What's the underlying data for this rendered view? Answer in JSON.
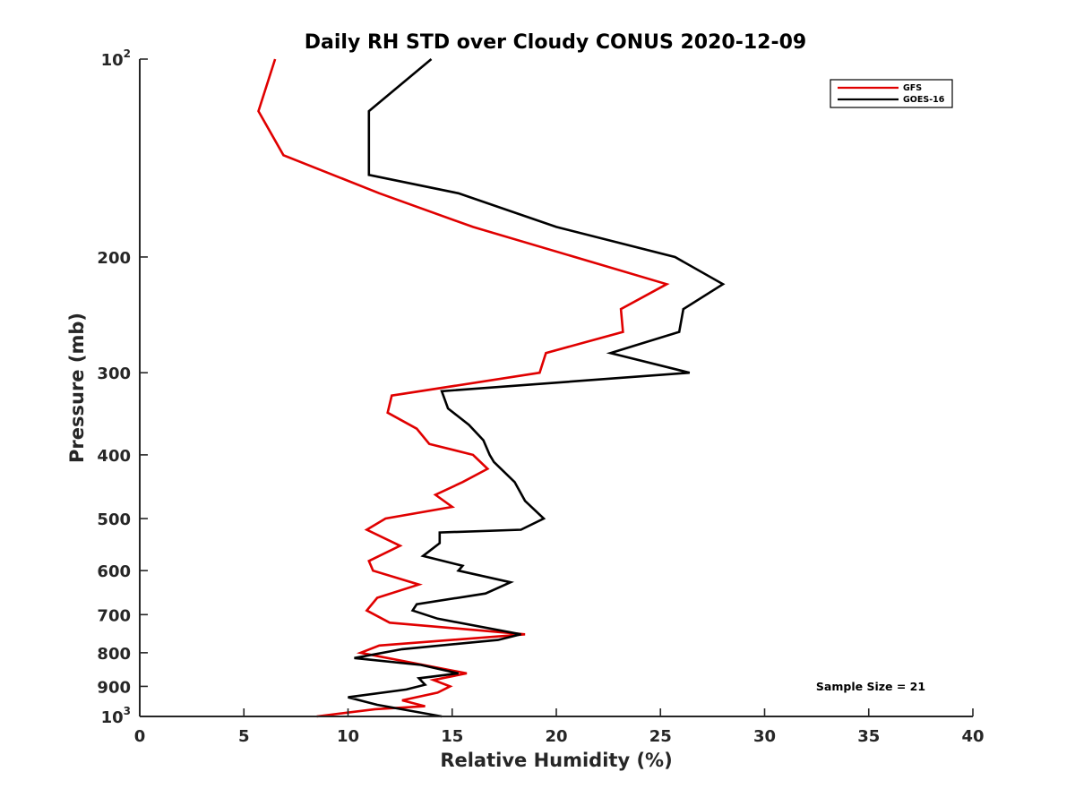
{
  "chart_data": {
    "type": "line",
    "title": "Daily RH STD over Cloudy CONUS 2020-12-09",
    "xlabel": "Relative Humidity (%)",
    "ylabel": "Pressure (mb)",
    "xlim": [
      0,
      40
    ],
    "ylim": [
      100,
      1000
    ],
    "yscale": "log",
    "y_reversed": true,
    "grid": false,
    "legend_position": "top-right",
    "x_ticks": [
      "0",
      "5",
      "10",
      "15",
      "20",
      "25",
      "30",
      "35",
      "40"
    ],
    "y_ticks": [
      {
        "value": 100,
        "base": "10",
        "exp": "2"
      },
      {
        "value": 200,
        "label": "200"
      },
      {
        "value": 300,
        "label": "300"
      },
      {
        "value": 400,
        "label": "400"
      },
      {
        "value": 500,
        "label": "500"
      },
      {
        "value": 600,
        "label": "600"
      },
      {
        "value": 700,
        "label": "700"
      },
      {
        "value": 800,
        "label": "800"
      },
      {
        "value": 900,
        "label": "900"
      },
      {
        "value": 1000,
        "base": "10",
        "exp": "3"
      }
    ],
    "annotation": "Sample Size = 21",
    "series": [
      {
        "name": "GFS",
        "color": "#e00000",
        "x": [
          6.5,
          5.7,
          6.9,
          11.5,
          16.0,
          25.3,
          23.1,
          23.2,
          19.5,
          19.2,
          12.1,
          11.9,
          13.3,
          13.9,
          16.0,
          16.7,
          15.5,
          14.2,
          15.0,
          11.8,
          10.9,
          12.5,
          11.0,
          11.2,
          13.4,
          11.4,
          10.9,
          12.0,
          18.5,
          11.5,
          10.6,
          15.7,
          14.1,
          14.9,
          14.3,
          12.6,
          13.7,
          11.3,
          8.5
        ],
        "y": [
          100,
          120,
          140,
          160,
          180,
          220,
          240,
          260,
          280,
          300,
          325,
          345,
          365,
          385,
          400,
          420,
          440,
          460,
          480,
          500,
          520,
          550,
          580,
          600,
          630,
          660,
          690,
          720,
          750,
          780,
          800,
          860,
          880,
          900,
          920,
          945,
          965,
          975,
          1000
        ]
      },
      {
        "name": "GOES-16",
        "color": "#000000",
        "x": [
          14.0,
          11.0,
          11.0,
          11.0,
          15.3,
          20.0,
          25.7,
          28.0,
          26.1,
          25.9,
          22.6,
          26.4,
          14.5,
          14.8,
          15.8,
          16.5,
          16.8,
          17.0,
          18.0,
          18.5,
          19.4,
          18.3,
          14.4,
          14.4,
          13.6,
          15.5,
          15.3,
          17.8,
          16.6,
          13.3,
          13.1,
          14.3,
          18.3,
          17.2,
          12.6,
          10.3,
          13.5,
          15.3,
          13.4,
          13.7,
          12.8,
          10.0,
          11.4,
          14.5
        ],
        "y": [
          100,
          120,
          140,
          150,
          160,
          180,
          200,
          220,
          240,
          260,
          280,
          300,
          320,
          340,
          360,
          380,
          400,
          410,
          440,
          470,
          500,
          520,
          525,
          545,
          570,
          590,
          600,
          625,
          650,
          675,
          690,
          710,
          750,
          765,
          790,
          815,
          835,
          860,
          875,
          895,
          910,
          935,
          960,
          1000
        ]
      }
    ]
  }
}
